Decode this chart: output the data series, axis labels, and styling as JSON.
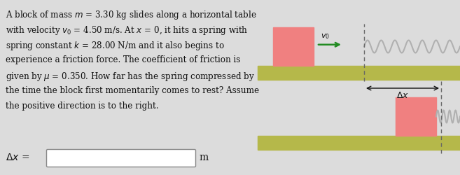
{
  "bg_color": "#dcdcdc",
  "block_color": "#f08080",
  "table_color": "#b5b84a",
  "spring_color": "#b0b0b0",
  "arrow_color": "#228B22",
  "dashed_color": "#666666",
  "v0_label": "$v_0$",
  "delta_x_label": "$\\Delta x$",
  "answer_label": "$\\Delta x$ =",
  "answer_unit": "m",
  "text_lines": [
    "A block of mass $m$ = 3.30 kg slides along a horizontal table",
    "with velocity $v_0$ = 4.50 m/s. At $x$ = 0, it hits a spring with",
    "spring constant $k$ = 28.00 N/m and it also begins to",
    "experience a friction force. The coefficient of friction is",
    "given by $\\mu$ = 0.350. How far has the spring compressed by",
    "the time the block first momentarily comes to rest? Assume",
    "the positive direction is to the right."
  ]
}
